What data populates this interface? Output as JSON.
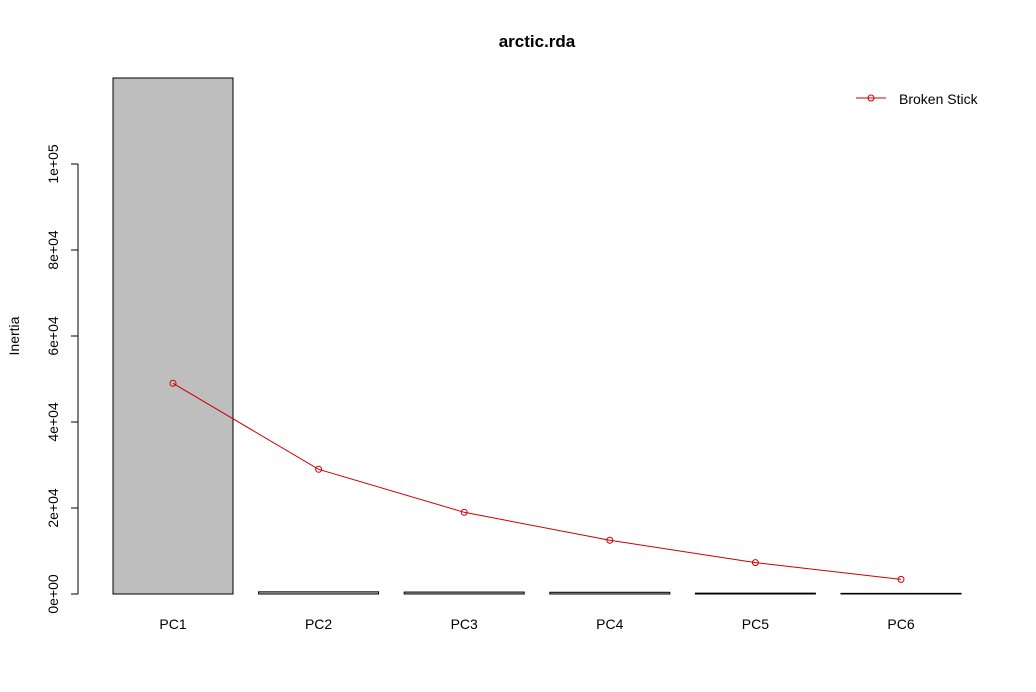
{
  "chart_data": {
    "type": "bar",
    "title": "arctic.rda",
    "xlabel": "",
    "ylabel": "Inertia",
    "categories": [
      "PC1",
      "PC2",
      "PC3",
      "PC4",
      "PC5",
      "PC6"
    ],
    "values": [
      120000,
      500,
      450,
      400,
      200,
      150
    ],
    "ylim": [
      0,
      120000
    ],
    "yticks": [
      0,
      20000,
      40000,
      60000,
      80000,
      100000
    ],
    "ytick_labels": [
      "0e+00",
      "2e+04",
      "4e+04",
      "6e+04",
      "8e+04",
      "1e+05"
    ],
    "bar_color": "#bebebe",
    "grid": false,
    "legend_position": "top-right",
    "series": [
      {
        "name": "Broken Stick",
        "type": "line",
        "color": "#cc0000",
        "values": [
          49000,
          29000,
          19000,
          12500,
          7300,
          3400
        ]
      }
    ]
  }
}
